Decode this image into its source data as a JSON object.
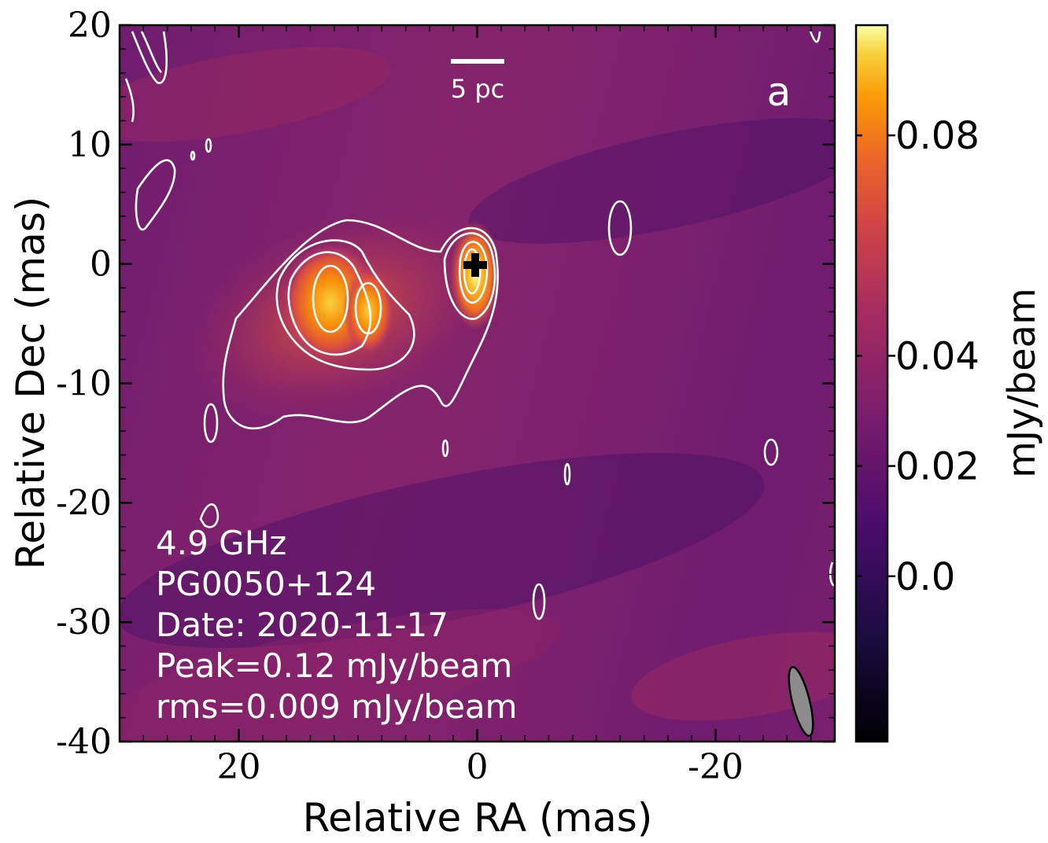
{
  "chart_data": {
    "type": "heatmap",
    "title": "",
    "xlabel": "Relative RA (mas)",
    "ylabel": "Relative Dec (mas)",
    "xlim": [
      30,
      -30
    ],
    "ylim": [
      -40,
      20
    ],
    "x_ticks": [
      20,
      0,
      -20
    ],
    "y_ticks": [
      20,
      10,
      0,
      -10,
      -20,
      -30,
      -40
    ],
    "x_tick_labels": [
      "20",
      "0",
      "-20"
    ],
    "y_tick_labels": [
      "20",
      "10",
      "0",
      "-10",
      "-20",
      "-30",
      "-40"
    ],
    "colormap": "inferno",
    "colorbar": {
      "label": "mJy/beam",
      "range": [
        -0.03,
        0.1
      ],
      "ticks": [
        0.08,
        0.04,
        0.02,
        0.0
      ],
      "tick_labels": [
        "0.08",
        "0.04",
        "0.02",
        "0.0"
      ]
    },
    "components": [
      {
        "x": 0,
        "y": -1,
        "flux": 0.12
      },
      {
        "x": 12.5,
        "y": -3,
        "flux": 0.09
      },
      {
        "x": 9,
        "y": -4.5,
        "flux": 0.07
      },
      {
        "x": 3,
        "y": -4,
        "flux": 0.03
      }
    ],
    "contour_colors": "#ffffff",
    "reference_marker": {
      "x": 0,
      "y": 0,
      "symbol": "+"
    },
    "beam": {
      "x": -27,
      "y": -36,
      "major_mas": 6,
      "minor_mas": 1.5,
      "pa_deg": -10
    },
    "scale_bar": {
      "label": "5 pc"
    },
    "panel_label": "a",
    "annotations": [
      "4.9 GHz",
      "PG0050+124",
      "Date: 2020-11-17",
      "Peak=0.12 mJy/beam",
      "rms=0.009 mJy/beam"
    ]
  }
}
